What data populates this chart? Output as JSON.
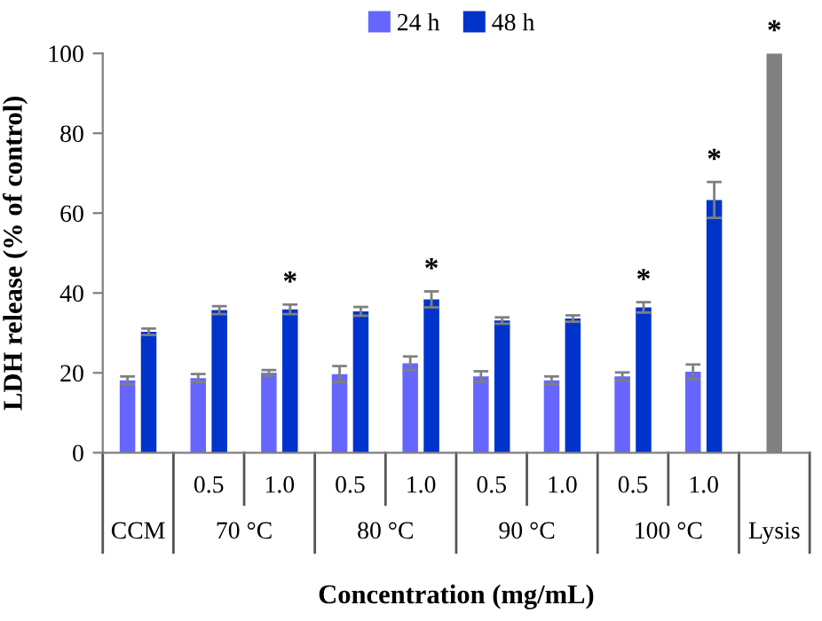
{
  "chart_data": {
    "type": "bar",
    "ylabel": "LDH release (% of control)",
    "xlabel": "Concentration (mg/mL)",
    "categories": [
      null,
      "0.5",
      "1.0",
      "0.5",
      "1.0",
      "0.5",
      "1.0",
      "0.5",
      "1.0",
      null
    ],
    "annotations": [
      "CCM",
      "70 °C",
      "80 °C",
      "90 °C",
      "100 °C",
      "Lysis"
    ],
    "series": [
      {
        "name": "24 h",
        "color": "#6666ff",
        "values": [
          18.1,
          18.7,
          20.0,
          19.7,
          22.4,
          19.1,
          18.1,
          19.1,
          20.3,
          null
        ],
        "errors": [
          1.0,
          1.0,
          0.7,
          2.0,
          1.7,
          1.3,
          1.0,
          1.0,
          1.8,
          null
        ]
      },
      {
        "name": "48 h",
        "color": "#0033cc",
        "values": [
          30.3,
          35.7,
          35.9,
          35.4,
          38.4,
          33.1,
          33.6,
          36.4,
          63.3,
          null
        ],
        "errors": [
          0.8,
          1.0,
          1.2,
          1.1,
          2.0,
          0.8,
          0.8,
          1.3,
          4.5,
          null
        ],
        "value_labels": [
          null,
          null,
          "*",
          null,
          "*",
          null,
          null,
          "*",
          "*",
          null
        ]
      },
      {
        "color": "#808080",
        "values": [
          null,
          null,
          null,
          null,
          null,
          null,
          null,
          null,
          null,
          100
        ],
        "value_labels": [
          null,
          null,
          null,
          null,
          null,
          null,
          null,
          null,
          null,
          "*"
        ]
      }
    ],
    "ylim": [
      0,
      100
    ],
    "yticks": [
      0,
      20,
      40,
      60,
      80,
      100
    ],
    "grid": false,
    "legend": "top"
  }
}
